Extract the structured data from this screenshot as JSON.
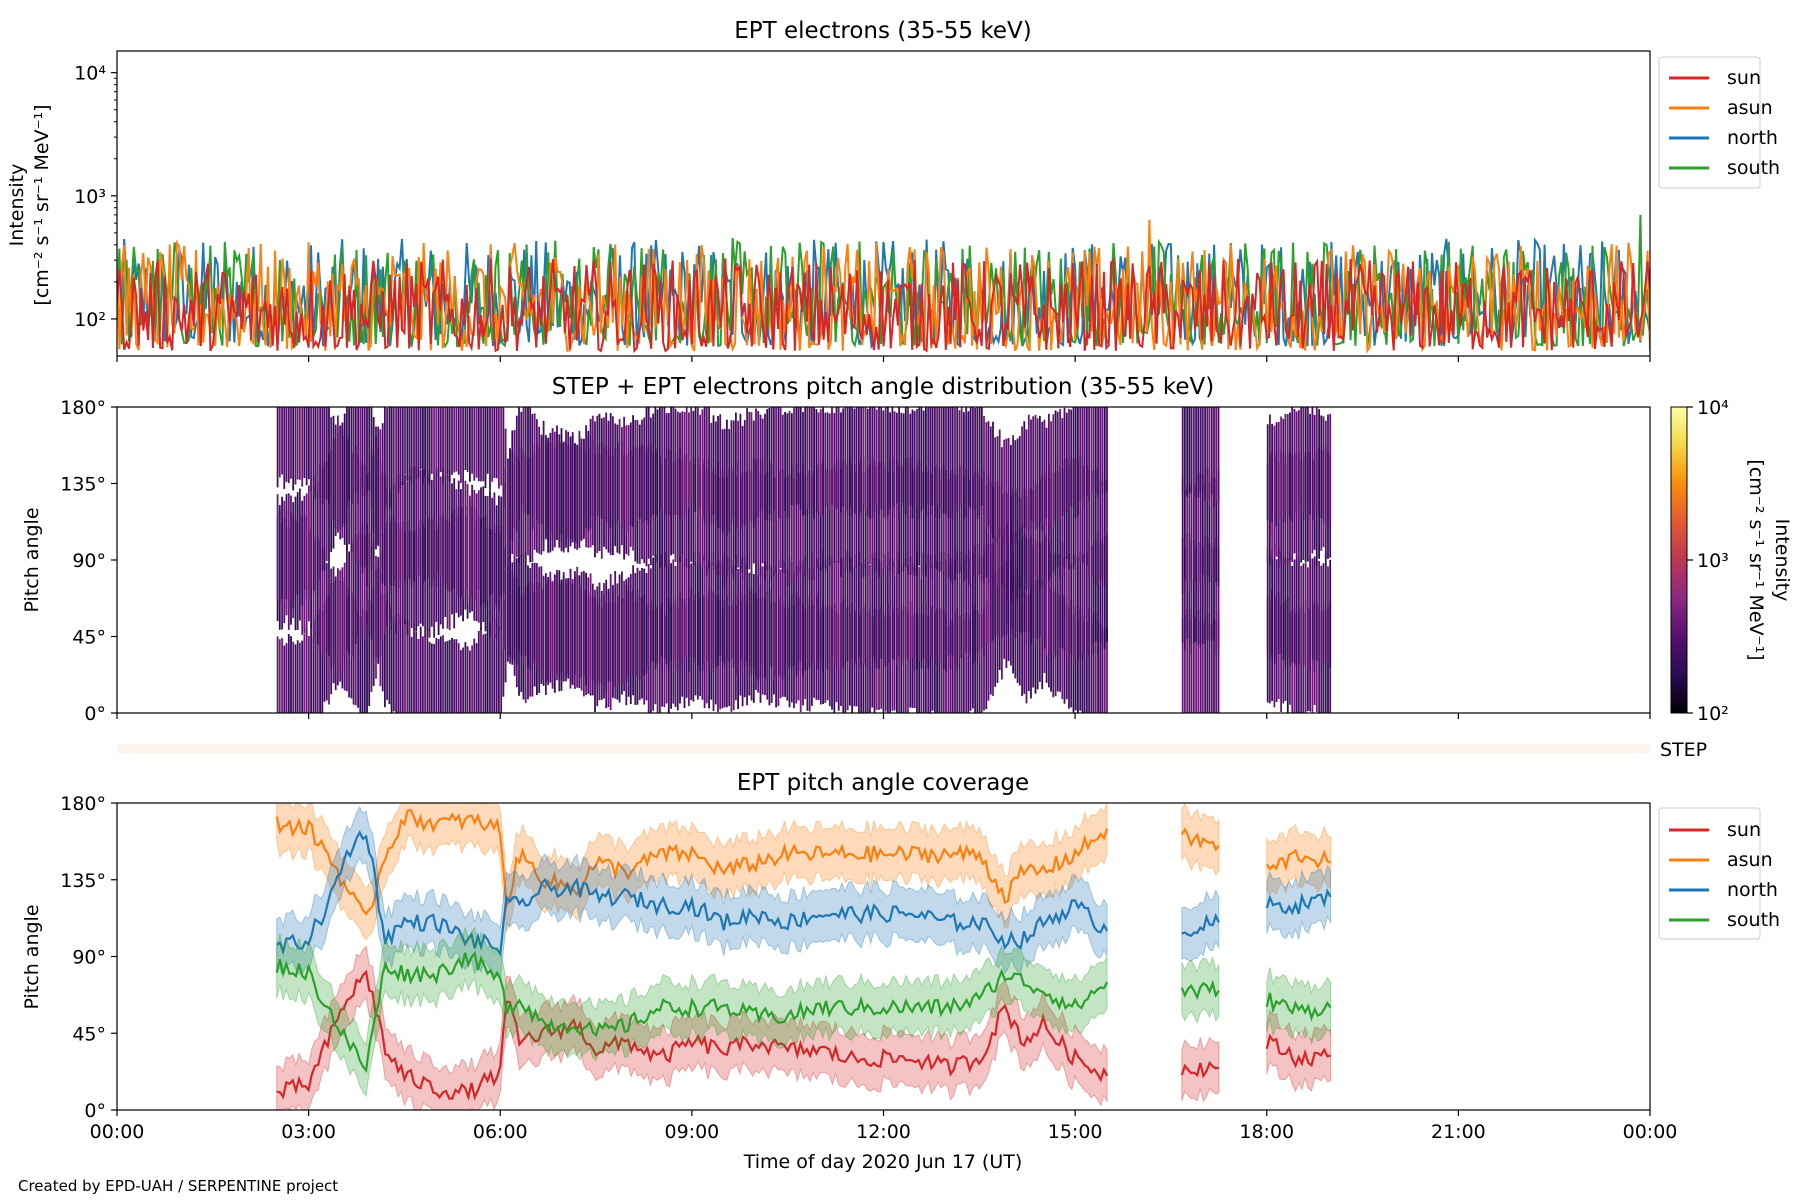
{
  "credit": "Created by EPD-UAH / SERPENTINE project",
  "colors": {
    "sun": "#d62728",
    "asun": "#ff7f0e",
    "north": "#1f77b4",
    "south": "#2ca02c",
    "step": "#fff3ee"
  },
  "colormap_stops": [
    "#000004",
    "#2a0b54",
    "#56106e",
    "#8c2981",
    "#bb3754",
    "#e35933",
    "#f98e09",
    "#f6d746",
    "#fcffa4"
  ],
  "chart_data": [
    {
      "type": "line",
      "title": "EPT electrons (35-55 keV)",
      "ylabel": [
        "Intensity",
        "[cm⁻² s⁻¹ sr⁻¹ MeV⁻¹]"
      ],
      "yscale": "log",
      "ylim": [
        50,
        15000
      ],
      "yticks": [
        {
          "value": 100,
          "label": "10²"
        },
        {
          "value": 1000,
          "label": "10³"
        },
        {
          "value": 10000,
          "label": "10⁴"
        }
      ],
      "xlim": [
        "2020-06-17T00:00",
        "2020-06-18T00:00"
      ],
      "legend": "upper-right-outside",
      "series": [
        {
          "name": "sun",
          "color": "#d62728",
          "typical_range": [
            55,
            310
          ]
        },
        {
          "name": "asun",
          "color": "#ff7f0e",
          "typical_range": [
            55,
            420
          ]
        },
        {
          "name": "north",
          "color": "#1f77b4",
          "typical_range": [
            60,
            450
          ]
        },
        {
          "name": "south",
          "color": "#2ca02c",
          "typical_range": [
            60,
            460
          ]
        }
      ],
      "peaks": [
        {
          "x": "2020-06-17T23:50",
          "value": 700,
          "series": "south"
        },
        {
          "x": "2020-06-17T16:10",
          "value": 640,
          "series": "asun"
        }
      ]
    },
    {
      "type": "heatmap",
      "title": "STEP + EPT electrons pitch angle distribution (35-55 keV)",
      "ylabel": "Pitch angle",
      "yticks": [
        "0°",
        "45°",
        "90°",
        "135°",
        "180°"
      ],
      "ylim": [
        0,
        180
      ],
      "xlim": [
        "2020-06-17T00:00",
        "2020-06-18T00:00"
      ],
      "colorbar": {
        "label": [
          "Intensity",
          "[cm⁻² s⁻¹ sr⁻¹ MeV⁻¹]"
        ],
        "scale": "log",
        "range": [
          100,
          10000
        ],
        "ticks": [
          "10²",
          "10³",
          "10⁴"
        ]
      },
      "data_intervals": [
        [
          "2020-06-17T02:30",
          "2020-06-17T15:30"
        ],
        [
          "2020-06-17T16:40",
          "2020-06-17T17:15"
        ],
        [
          "2020-06-17T18:00",
          "2020-06-17T19:00"
        ]
      ],
      "typical_value": 300
    },
    {
      "type": "bar",
      "label": "STEP",
      "xlim": [
        "2020-06-17T00:00",
        "2020-06-18T00:00"
      ]
    },
    {
      "type": "area",
      "title": "EPT pitch angle coverage",
      "ylabel": "Pitch angle",
      "ylim": [
        0,
        180
      ],
      "yticks": [
        "0°",
        "45°",
        "90°",
        "135°",
        "180°"
      ],
      "xlabel": "Time of day 2020 Jun 17 (UT)",
      "xticks": [
        "00:00",
        "03:00",
        "06:00",
        "09:00",
        "12:00",
        "15:00",
        "18:00",
        "21:00",
        "00:00"
      ],
      "xtick_hours": [
        0,
        3,
        6,
        9,
        12,
        15,
        18,
        21,
        24
      ],
      "legend": "upper-right-outside",
      "band_halfwidth": 15,
      "segments_hours": [
        [
          2.5,
          15.5
        ],
        [
          16.67,
          17.25
        ],
        [
          18.0,
          19.0
        ]
      ],
      "series": [
        {
          "name": "sun",
          "color": "#d62728",
          "points": [
            [
              2.5,
              10
            ],
            [
              3.0,
              15
            ],
            [
              3.3,
              40
            ],
            [
              3.6,
              65
            ],
            [
              3.9,
              80
            ],
            [
              4.05,
              60
            ],
            [
              4.2,
              35
            ],
            [
              4.5,
              20
            ],
            [
              5.0,
              12
            ],
            [
              5.5,
              10
            ],
            [
              6.0,
              22
            ],
            [
              6.1,
              65
            ],
            [
              6.3,
              40
            ],
            [
              6.7,
              45
            ],
            [
              7.2,
              50
            ],
            [
              7.5,
              35
            ],
            [
              8.0,
              40
            ],
            [
              8.5,
              30
            ],
            [
              9.0,
              40
            ],
            [
              9.5,
              35
            ],
            [
              10.0,
              40
            ],
            [
              10.5,
              35
            ],
            [
              11.0,
              35
            ],
            [
              11.5,
              30
            ],
            [
              12.0,
              30
            ],
            [
              12.5,
              30
            ],
            [
              13.0,
              25
            ],
            [
              13.5,
              30
            ],
            [
              13.9,
              60
            ],
            [
              14.2,
              40
            ],
            [
              14.5,
              50
            ],
            [
              15.0,
              30
            ],
            [
              15.5,
              20
            ],
            [
              16.67,
              25
            ],
            [
              17.25,
              25
            ],
            [
              18.0,
              40
            ],
            [
              18.5,
              30
            ],
            [
              19.0,
              32
            ]
          ]
        },
        {
          "name": "asun",
          "color": "#ff7f0e",
          "points": [
            [
              2.5,
              168
            ],
            [
              3.0,
              165
            ],
            [
              3.3,
              150
            ],
            [
              3.6,
              130
            ],
            [
              3.9,
              110
            ],
            [
              4.2,
              150
            ],
            [
              4.5,
              172
            ],
            [
              5.0,
              168
            ],
            [
              5.5,
              170
            ],
            [
              6.0,
              165
            ],
            [
              6.1,
              120
            ],
            [
              6.3,
              150
            ],
            [
              6.7,
              135
            ],
            [
              7.2,
              130
            ],
            [
              7.5,
              145
            ],
            [
              8.0,
              140
            ],
            [
              8.5,
              150
            ],
            [
              9.0,
              150
            ],
            [
              9.5,
              140
            ],
            [
              10.0,
              145
            ],
            [
              10.5,
              150
            ],
            [
              11.0,
              150
            ],
            [
              11.5,
              150
            ],
            [
              12.0,
              150
            ],
            [
              12.5,
              150
            ],
            [
              13.0,
              150
            ],
            [
              13.5,
              150
            ],
            [
              13.9,
              125
            ],
            [
              14.2,
              140
            ],
            [
              14.5,
              140
            ],
            [
              15.0,
              150
            ],
            [
              15.5,
              165
            ],
            [
              16.67,
              160
            ],
            [
              17.25,
              155
            ],
            [
              18.0,
              140
            ],
            [
              18.5,
              150
            ],
            [
              19.0,
              145
            ]
          ]
        },
        {
          "name": "north",
          "color": "#1f77b4",
          "points": [
            [
              2.5,
              95
            ],
            [
              3.0,
              100
            ],
            [
              3.3,
              120
            ],
            [
              3.6,
              150
            ],
            [
              3.9,
              165
            ],
            [
              4.2,
              100
            ],
            [
              4.5,
              110
            ],
            [
              5.0,
              110
            ],
            [
              5.5,
              100
            ],
            [
              6.0,
              95
            ],
            [
              6.1,
              120
            ],
            [
              6.3,
              120
            ],
            [
              6.7,
              130
            ],
            [
              7.2,
              130
            ],
            [
              7.5,
              125
            ],
            [
              8.0,
              125
            ],
            [
              8.5,
              120
            ],
            [
              9.0,
              120
            ],
            [
              9.5,
              110
            ],
            [
              10.0,
              115
            ],
            [
              10.5,
              110
            ],
            [
              11.0,
              115
            ],
            [
              11.5,
              115
            ],
            [
              12.0,
              115
            ],
            [
              12.5,
              115
            ],
            [
              13.0,
              110
            ],
            [
              13.5,
              110
            ],
            [
              13.9,
              100
            ],
            [
              14.2,
              100
            ],
            [
              14.5,
              110
            ],
            [
              15.0,
              120
            ],
            [
              15.5,
              105
            ],
            [
              16.67,
              105
            ],
            [
              17.25,
              110
            ],
            [
              18.0,
              120
            ],
            [
              18.5,
              120
            ],
            [
              19.0,
              125
            ]
          ]
        },
        {
          "name": "south",
          "color": "#2ca02c",
          "points": [
            [
              2.5,
              85
            ],
            [
              3.0,
              80
            ],
            [
              3.3,
              60
            ],
            [
              3.6,
              40
            ],
            [
              3.9,
              25
            ],
            [
              4.2,
              85
            ],
            [
              4.5,
              80
            ],
            [
              5.0,
              80
            ],
            [
              5.5,
              90
            ],
            [
              6.0,
              75
            ],
            [
              6.1,
              60
            ],
            [
              6.3,
              65
            ],
            [
              6.7,
              50
            ],
            [
              7.2,
              50
            ],
            [
              7.5,
              45
            ],
            [
              8.0,
              50
            ],
            [
              8.5,
              60
            ],
            [
              9.0,
              60
            ],
            [
              9.5,
              60
            ],
            [
              10.0,
              55
            ],
            [
              10.5,
              55
            ],
            [
              11.0,
              60
            ],
            [
              11.5,
              60
            ],
            [
              12.0,
              60
            ],
            [
              12.5,
              60
            ],
            [
              13.0,
              60
            ],
            [
              13.5,
              65
            ],
            [
              13.9,
              80
            ],
            [
              14.2,
              75
            ],
            [
              14.5,
              70
            ],
            [
              15.0,
              60
            ],
            [
              15.5,
              75
            ],
            [
              16.67,
              70
            ],
            [
              17.25,
              70
            ],
            [
              18.0,
              65
            ],
            [
              18.5,
              58
            ],
            [
              19.0,
              60
            ]
          ]
        }
      ]
    }
  ]
}
